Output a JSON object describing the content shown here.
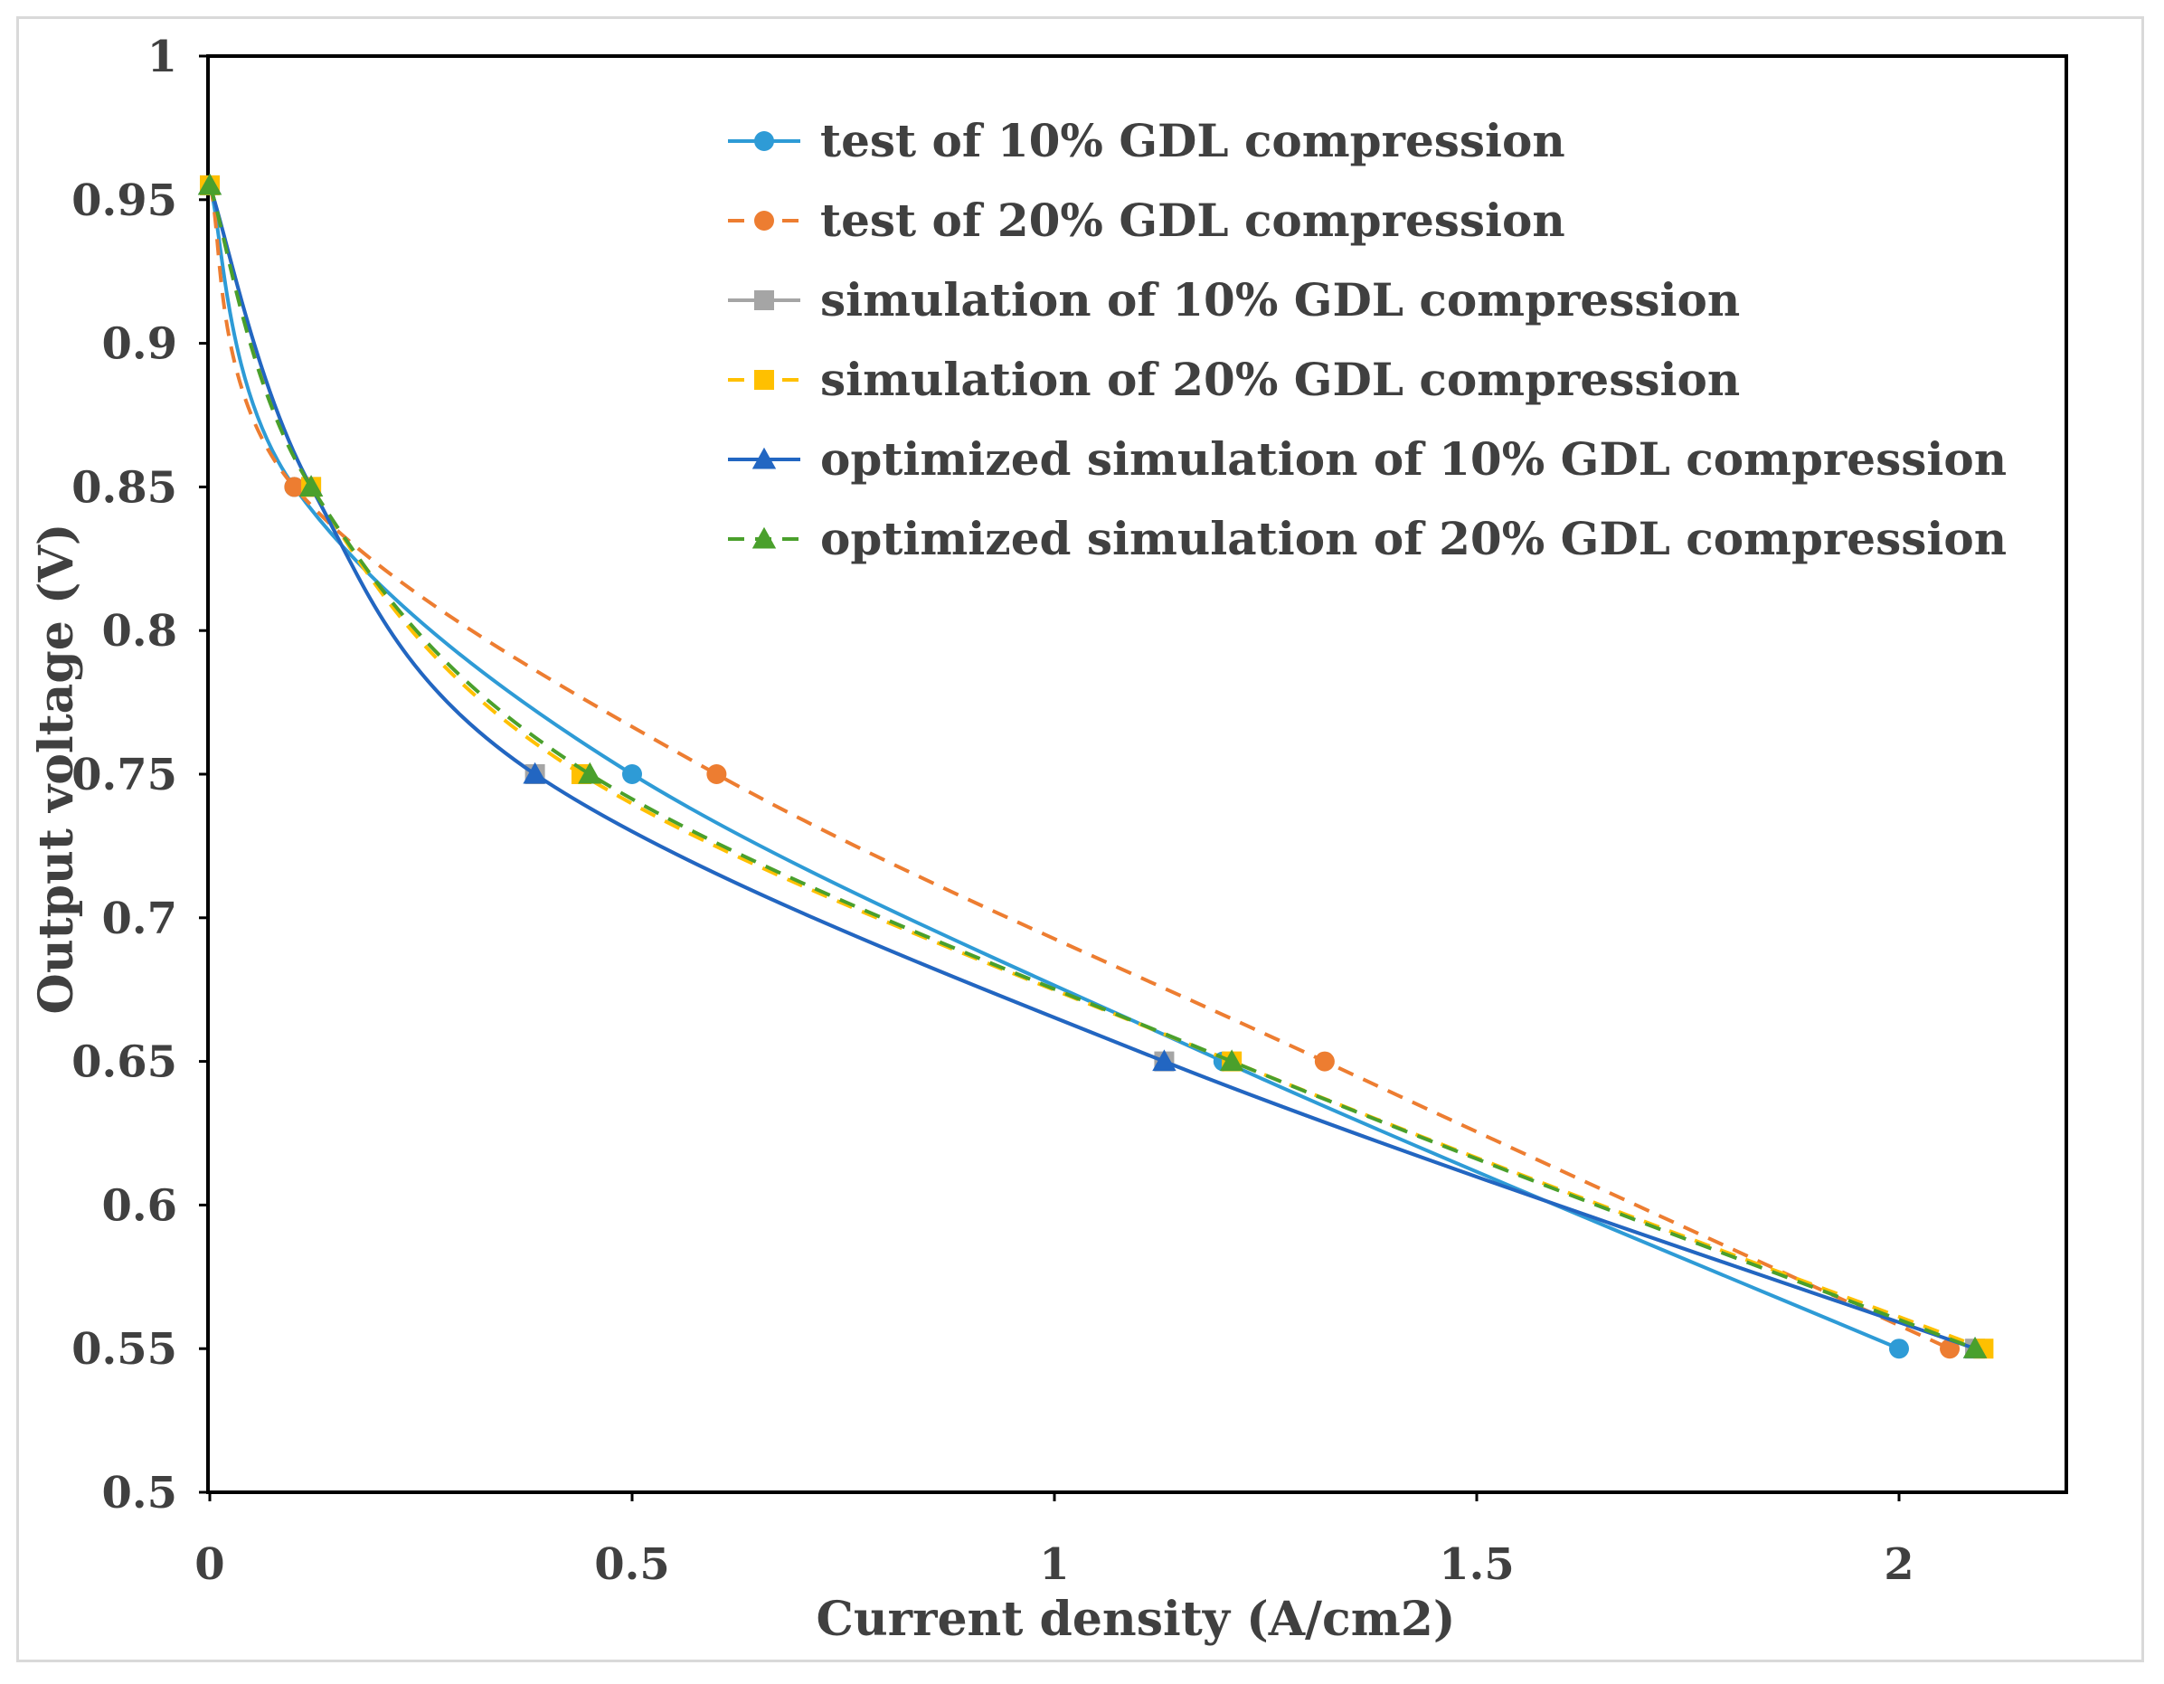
{
  "chart_data": {
    "type": "line",
    "xlabel": "Current density (A/cm2)",
    "ylabel": "Output voltage (V)",
    "xlim": [
      0,
      2.2
    ],
    "ylim": [
      0.5,
      1
    ],
    "xticks": [
      "0",
      "0.5",
      "1",
      "1.5",
      "2"
    ],
    "yticks": [
      "0.5",
      "0.55",
      "0.6",
      "0.65",
      "0.7",
      "0.75",
      "0.8",
      "0.85",
      "0.9",
      "0.95",
      "1"
    ],
    "grid": false,
    "legend_position": "top-right",
    "series": [
      {
        "name": "test of 10% GDL compression",
        "color": "#2e9bd6",
        "marker": "circle",
        "dash": "solid",
        "points": [
          [
            0,
            0.955
          ],
          [
            0.1,
            0.85
          ],
          [
            0.5,
            0.75
          ],
          [
            1.2,
            0.65
          ],
          [
            2.0,
            0.55
          ]
        ]
      },
      {
        "name": "test of 20% GDL compression",
        "color": "#ed7d31",
        "marker": "circle",
        "dash": "dashed",
        "points": [
          [
            0,
            0.955
          ],
          [
            0.1,
            0.85
          ],
          [
            0.6,
            0.75
          ],
          [
            1.32,
            0.65
          ],
          [
            2.06,
            0.55
          ]
        ]
      },
      {
        "name": "simulation of 10% GDL compression",
        "color": "#a5a5a5",
        "marker": "square",
        "dash": "solid",
        "points": [
          [
            0,
            0.955
          ],
          [
            0.12,
            0.85
          ],
          [
            0.385,
            0.75
          ],
          [
            1.13,
            0.65
          ],
          [
            2.09,
            0.55
          ]
        ]
      },
      {
        "name": "simulation of 20% GDL compression",
        "color": "#ffc000",
        "marker": "square",
        "dash": "dashed",
        "points": [
          [
            0,
            0.955
          ],
          [
            0.12,
            0.85
          ],
          [
            0.44,
            0.75
          ],
          [
            1.21,
            0.65
          ],
          [
            2.1,
            0.55
          ]
        ]
      },
      {
        "name": "optimized simulation of 10% GDL compression",
        "color": "#2266c2",
        "marker": "triangle",
        "dash": "solid",
        "points": [
          [
            0,
            0.955
          ],
          [
            0.12,
            0.85
          ],
          [
            0.385,
            0.75
          ],
          [
            1.13,
            0.65
          ],
          [
            2.09,
            0.55
          ]
        ]
      },
      {
        "name": "optimized simulation of 20% GDL compression",
        "color": "#4aa02c",
        "marker": "triangle",
        "dash": "dashed",
        "points": [
          [
            0,
            0.955
          ],
          [
            0.12,
            0.85
          ],
          [
            0.45,
            0.75
          ],
          [
            1.21,
            0.65
          ],
          [
            2.09,
            0.55
          ]
        ]
      }
    ]
  }
}
